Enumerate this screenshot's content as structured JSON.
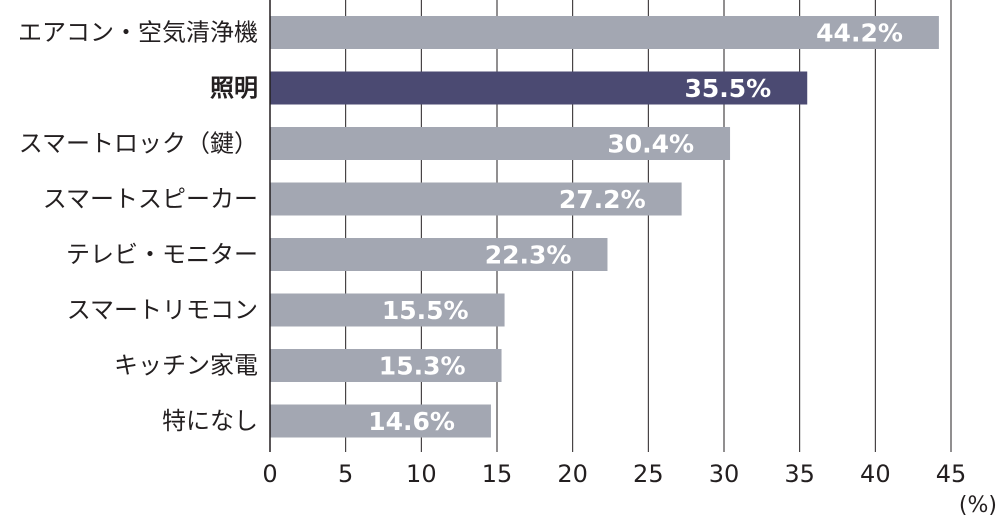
{
  "chart_data": {
    "type": "bar",
    "orientation": "horizontal",
    "categories": [
      "エアコン・空気清浄機",
      "照明",
      "スマートロック（鍵）",
      "スマートスピーカー",
      "テレビ・モニター",
      "スマートリモコン",
      "キッチン家電",
      "特になし"
    ],
    "values": [
      44.2,
      35.5,
      30.4,
      27.2,
      22.3,
      15.5,
      15.3,
      14.6
    ],
    "value_labels": [
      "44.2%",
      "35.5%",
      "30.4%",
      "27.2%",
      "22.3%",
      "15.5%",
      "15.3%",
      "14.6%"
    ],
    "highlight_index": 1,
    "xlim": [
      0,
      45
    ],
    "xticks": [
      0,
      5,
      10,
      15,
      20,
      25,
      30,
      35,
      40,
      45
    ],
    "xunit": "(%)",
    "grid": true,
    "colors": {
      "bar": "#a3a7b2",
      "highlight": "#4b4a72",
      "grid": "#231f20",
      "label": "#ffffff"
    }
  }
}
